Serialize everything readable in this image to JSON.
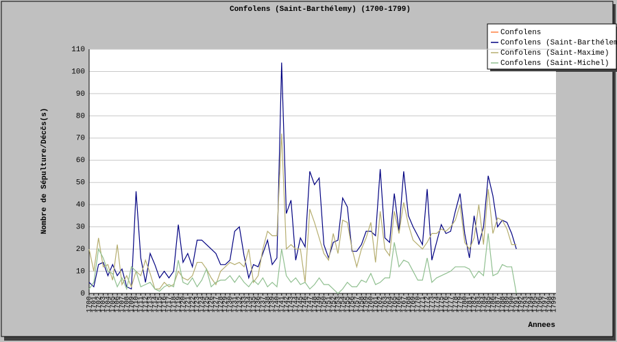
{
  "chart_data": {
    "type": "line",
    "title": "Confolens (Saint-Barthélemy) (1700-1799)",
    "y_label": "Nombre de Sépulture/Décčs(s)",
    "x_label": "Annees",
    "x": [
      1700,
      1701,
      1702,
      1703,
      1704,
      1705,
      1706,
      1707,
      1708,
      1709,
      1710,
      1711,
      1712,
      1713,
      1714,
      1715,
      1716,
      1717,
      1718,
      1719,
      1720,
      1721,
      1722,
      1723,
      1724,
      1725,
      1726,
      1727,
      1728,
      1729,
      1730,
      1731,
      1732,
      1733,
      1734,
      1735,
      1736,
      1737,
      1738,
      1739,
      1740,
      1741,
      1742,
      1743,
      1744,
      1745,
      1746,
      1747,
      1748,
      1749,
      1750,
      1751,
      1752,
      1753,
      1754,
      1755,
      1756,
      1757,
      1758,
      1759,
      1760,
      1761,
      1762,
      1763,
      1764,
      1765,
      1766,
      1767,
      1768,
      1769,
      1770,
      1771,
      1772,
      1773,
      1774,
      1775,
      1776,
      1777,
      1778,
      1779,
      1780,
      1781,
      1782,
      1783,
      1784,
      1785,
      1786,
      1787,
      1788,
      1789,
      1790,
      1791,
      1792,
      1793,
      1794,
      1795,
      1796,
      1797,
      1798,
      1799
    ],
    "xlim": [
      1700,
      1799
    ],
    "ylim": [
      0,
      110
    ],
    "yticks": [
      0,
      10,
      20,
      30,
      40,
      50,
      60,
      70,
      80,
      90,
      100,
      110
    ],
    "grid": true,
    "legend": "top-right",
    "series": [
      {
        "name": "Confolens",
        "color": "#ff7f3f",
        "values": [
          null,
          null,
          null,
          null,
          null,
          null,
          null,
          null,
          null,
          null,
          null,
          null,
          null,
          null,
          null,
          null,
          null,
          null,
          null,
          null,
          null,
          null,
          null,
          null,
          null,
          null,
          null,
          null,
          null,
          null,
          null,
          null,
          null,
          null,
          null,
          null,
          null,
          null,
          null,
          null,
          null,
          null,
          null,
          null,
          null,
          null,
          null,
          null,
          null,
          null,
          null,
          null,
          null,
          null,
          null,
          null,
          null,
          null,
          null,
          null,
          null,
          null,
          null,
          null,
          null,
          null,
          null,
          null,
          null,
          null,
          null,
          null,
          null,
          null,
          null,
          null,
          null,
          null,
          null,
          null,
          null,
          null,
          null,
          null,
          null,
          null,
          null,
          null,
          null,
          null,
          null,
          null,
          null,
          null,
          null,
          null,
          null,
          null,
          null,
          null
        ]
      },
      {
        "name": "Confolens (Saint-Barthélemy)",
        "color": "#000080",
        "values": [
          5,
          3,
          13,
          14,
          8,
          13,
          8,
          11,
          3,
          2,
          46,
          16,
          5,
          18,
          13,
          7,
          10,
          7,
          10,
          31,
          14,
          18,
          12,
          24,
          24,
          22,
          20,
          18,
          13,
          13,
          15,
          28,
          30,
          17,
          7,
          13,
          12,
          18,
          24,
          13,
          16,
          104,
          36,
          42,
          15,
          25,
          21,
          55,
          49,
          52,
          22,
          16,
          23,
          24,
          43,
          39,
          19,
          19,
          22,
          28,
          28,
          26,
          56,
          25,
          23,
          45,
          28,
          55,
          35,
          30,
          26,
          22,
          47,
          15,
          23,
          31,
          27,
          28,
          37,
          45,
          27,
          16,
          35,
          22,
          30,
          53,
          44,
          30,
          33,
          32,
          27,
          20,
          null,
          null,
          null,
          null,
          null,
          null,
          null,
          null
        ]
      },
      {
        "name": "Confolens (Saint-Maxime)",
        "color": "#b5ad6e",
        "values": [
          20,
          10,
          25,
          12,
          13,
          6,
          22,
          4,
          8,
          3,
          10,
          8,
          15,
          9,
          2,
          2,
          5,
          3,
          4,
          10,
          7,
          6,
          8,
          14,
          14,
          11,
          7,
          4,
          10,
          12,
          14,
          13,
          14,
          12,
          20,
          5,
          8,
          20,
          28,
          26,
          26,
          72,
          20,
          22,
          20,
          20,
          5,
          38,
          32,
          25,
          18,
          15,
          27,
          18,
          33,
          32,
          20,
          12,
          20,
          25,
          32,
          14,
          37,
          20,
          17,
          37,
          27,
          41,
          31,
          24,
          22,
          20,
          23,
          27,
          27,
          29,
          28,
          30,
          33,
          40,
          23,
          20,
          25,
          40,
          22,
          47,
          27,
          34,
          33,
          29,
          22,
          22,
          null,
          null,
          null,
          null,
          null,
          null,
          null,
          null
        ]
      },
      {
        "name": "Confolens (Saint-Michel)",
        "color": "#8fbf8f",
        "values": [
          2,
          5,
          20,
          16,
          10,
          9,
          3,
          7,
          2,
          12,
          10,
          3,
          4,
          5,
          2,
          1,
          3,
          4,
          3,
          15,
          5,
          4,
          7,
          3,
          6,
          11,
          3,
          5,
          6,
          6,
          8,
          5,
          8,
          5,
          3,
          6,
          4,
          7,
          3,
          5,
          3,
          20,
          8,
          5,
          7,
          4,
          5,
          2,
          4,
          7,
          4,
          4,
          2,
          0,
          2,
          5,
          3,
          3,
          6,
          5,
          9,
          4,
          5,
          7,
          7,
          23,
          12,
          15,
          14,
          10,
          6,
          6,
          16,
          5,
          7,
          8,
          9,
          10,
          12,
          12,
          12,
          11,
          7,
          10,
          8,
          27,
          8,
          9,
          13,
          12,
          12,
          0,
          null,
          null,
          null,
          null,
          null,
          null,
          null,
          null
        ]
      }
    ]
  }
}
